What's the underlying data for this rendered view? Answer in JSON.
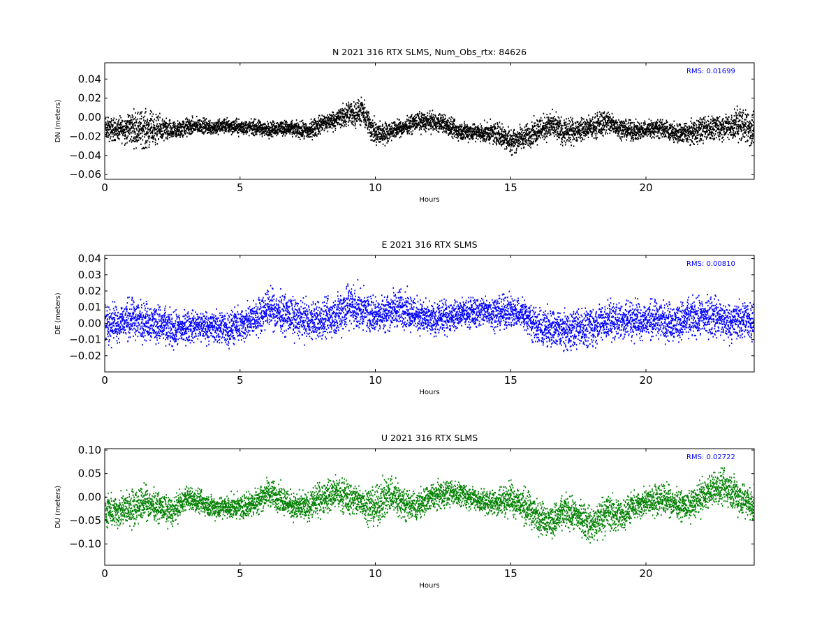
{
  "chart_data": [
    {
      "type": "scatter",
      "title": "N 2021 316 RTX  SLMS, Num_Obs_rtx: 84626",
      "xlabel": "Hours",
      "ylabel": "DN (meters)",
      "xlim": [
        0,
        24
      ],
      "ylim": [
        -0.065,
        0.057
      ],
      "xticks": [
        0,
        5,
        10,
        15,
        20
      ],
      "yticks": [
        -0.06,
        -0.04,
        -0.02,
        0.0,
        0.02,
        0.04
      ],
      "ytick_labels": [
        "−0.06",
        "−0.04",
        "−0.02",
        "0.00",
        "0.02",
        "0.04"
      ],
      "annotation": "RMS:  0.01699",
      "color": "#000000",
      "series": [
        {
          "x": [
            0,
            0.5,
            1,
            1.5,
            2,
            2.5,
            3,
            3.5,
            4,
            4.5,
            5,
            5.5,
            6,
            6.5,
            7,
            7.5,
            8,
            8.5,
            9,
            9.5,
            10,
            10.5,
            11,
            11.5,
            12,
            12.5,
            13,
            13.5,
            14,
            14.5,
            15,
            15.5,
            16,
            16.5,
            17,
            17.5,
            18,
            18.5,
            19,
            19.5,
            20,
            20.5,
            21,
            21.5,
            22,
            22.5,
            23,
            23.5,
            24
          ],
          "center": [
            -0.012,
            -0.012,
            -0.01,
            -0.012,
            -0.012,
            -0.014,
            -0.01,
            -0.008,
            -0.01,
            -0.008,
            -0.01,
            -0.01,
            -0.012,
            -0.01,
            -0.012,
            -0.014,
            -0.006,
            -0.002,
            0.004,
            0.006,
            -0.018,
            -0.014,
            -0.01,
            -0.004,
            -0.004,
            -0.006,
            -0.014,
            -0.014,
            -0.016,
            -0.016,
            -0.024,
            -0.02,
            -0.012,
            -0.008,
            -0.016,
            -0.012,
            -0.01,
            -0.004,
            -0.01,
            -0.014,
            -0.012,
            -0.01,
            -0.016,
            -0.016,
            -0.012,
            -0.01,
            -0.01,
            -0.006,
            -0.014
          ],
          "spread": [
            0.012,
            0.012,
            0.018,
            0.02,
            0.014,
            0.01,
            0.01,
            0.008,
            0.008,
            0.008,
            0.008,
            0.008,
            0.008,
            0.008,
            0.008,
            0.01,
            0.01,
            0.01,
            0.014,
            0.014,
            0.014,
            0.01,
            0.008,
            0.01,
            0.01,
            0.01,
            0.01,
            0.01,
            0.01,
            0.012,
            0.014,
            0.012,
            0.014,
            0.014,
            0.014,
            0.012,
            0.012,
            0.014,
            0.01,
            0.01,
            0.01,
            0.01,
            0.01,
            0.012,
            0.014,
            0.012,
            0.014,
            0.018,
            0.02
          ]
        }
      ]
    },
    {
      "type": "scatter",
      "title": "E 2021 316 RTX  SLMS",
      "xlabel": "Hours",
      "ylabel": "DE (meters)",
      "xlim": [
        0,
        24
      ],
      "ylim": [
        -0.03,
        0.042
      ],
      "xticks": [
        0,
        5,
        10,
        15,
        20
      ],
      "yticks": [
        -0.02,
        -0.01,
        0.0,
        0.01,
        0.02,
        0.03,
        0.04
      ],
      "ytick_labels": [
        "−0.02",
        "−0.01",
        "0.00",
        "0.01",
        "0.02",
        "0.03",
        "0.04"
      ],
      "annotation": "RMS:  0.00810",
      "color": "#0000ff",
      "series": [
        {
          "x": [
            0,
            0.5,
            1,
            1.5,
            2,
            2.5,
            3,
            3.5,
            4,
            4.5,
            5,
            5.5,
            6,
            6.5,
            7,
            7.5,
            8,
            8.5,
            9,
            9.5,
            10,
            10.5,
            11,
            11.5,
            12,
            12.5,
            13,
            13.5,
            14,
            14.5,
            15,
            15.5,
            16,
            16.5,
            17,
            17.5,
            18,
            18.5,
            19,
            19.5,
            20,
            20.5,
            21,
            21.5,
            22,
            22.5,
            23,
            23.5,
            24
          ],
          "center": [
            0.0,
            0.001,
            0.003,
            0.002,
            0.0,
            -0.004,
            -0.002,
            -0.001,
            -0.002,
            -0.003,
            -0.001,
            0.003,
            0.01,
            0.007,
            0.004,
            0.002,
            0.002,
            0.005,
            0.012,
            0.008,
            0.006,
            0.008,
            0.01,
            0.006,
            0.002,
            0.004,
            0.006,
            0.007,
            0.008,
            0.007,
            0.008,
            0.006,
            -0.002,
            -0.003,
            -0.004,
            -0.002,
            -0.002,
            0.002,
            0.002,
            0.003,
            0.002,
            0.003,
            0.001,
            0.003,
            0.004,
            0.005,
            0.001,
            0.002,
            0.003
          ],
          "spread": [
            0.012,
            0.012,
            0.013,
            0.012,
            0.012,
            0.011,
            0.01,
            0.01,
            0.01,
            0.011,
            0.011,
            0.011,
            0.012,
            0.012,
            0.012,
            0.012,
            0.012,
            0.013,
            0.016,
            0.012,
            0.011,
            0.012,
            0.012,
            0.011,
            0.01,
            0.01,
            0.009,
            0.009,
            0.01,
            0.01,
            0.01,
            0.01,
            0.012,
            0.012,
            0.012,
            0.012,
            0.012,
            0.012,
            0.012,
            0.012,
            0.012,
            0.012,
            0.012,
            0.012,
            0.012,
            0.013,
            0.012,
            0.012,
            0.012
          ]
        }
      ]
    },
    {
      "type": "scatter",
      "title": "U 2021 316 RTX  SLMS",
      "xlabel": "Hours",
      "ylabel": "DU (meters)",
      "xlim": [
        0,
        24
      ],
      "ylim": [
        -0.145,
        0.103
      ],
      "xticks": [
        0,
        5,
        10,
        15,
        20
      ],
      "yticks": [
        -0.1,
        -0.05,
        0.0,
        0.05,
        0.1
      ],
      "ytick_labels": [
        "−0.10",
        "−0.05",
        "0.00",
        "0.05",
        "0.10"
      ],
      "annotation": "RMS:  0.02722",
      "color": "#008000",
      "series": [
        {
          "x": [
            0,
            0.5,
            1,
            1.5,
            2,
            2.5,
            3,
            3.5,
            4,
            4.5,
            5,
            5.5,
            6,
            6.5,
            7,
            7.5,
            8,
            8.5,
            9,
            9.5,
            10,
            10.5,
            11,
            11.5,
            12,
            12.5,
            13,
            13.5,
            14,
            14.5,
            15,
            15.5,
            16,
            16.5,
            17,
            17.5,
            18,
            18.5,
            19,
            19.5,
            20,
            20.5,
            21,
            21.5,
            22,
            22.5,
            23,
            23.5,
            24
          ],
          "center": [
            -0.03,
            -0.03,
            -0.02,
            -0.01,
            -0.02,
            -0.03,
            0.0,
            -0.01,
            -0.02,
            -0.02,
            -0.02,
            -0.01,
            0.01,
            0.0,
            -0.02,
            -0.02,
            0.0,
            0.01,
            0.0,
            -0.01,
            -0.02,
            0.01,
            -0.01,
            -0.02,
            0.0,
            0.01,
            0.01,
            0.0,
            -0.01,
            -0.01,
            0.0,
            -0.02,
            -0.04,
            -0.05,
            -0.03,
            -0.04,
            -0.06,
            -0.03,
            -0.04,
            -0.02,
            -0.01,
            0.0,
            -0.01,
            -0.02,
            0.0,
            0.02,
            0.02,
            0.0,
            -0.02
          ],
          "spread": [
            0.035,
            0.035,
            0.04,
            0.035,
            0.03,
            0.03,
            0.025,
            0.025,
            0.025,
            0.025,
            0.025,
            0.03,
            0.03,
            0.03,
            0.03,
            0.03,
            0.035,
            0.035,
            0.035,
            0.035,
            0.04,
            0.045,
            0.035,
            0.03,
            0.03,
            0.03,
            0.025,
            0.025,
            0.025,
            0.03,
            0.035,
            0.04,
            0.035,
            0.035,
            0.035,
            0.035,
            0.04,
            0.045,
            0.035,
            0.03,
            0.03,
            0.035,
            0.03,
            0.03,
            0.035,
            0.035,
            0.04,
            0.04,
            0.035
          ]
        }
      ]
    }
  ]
}
